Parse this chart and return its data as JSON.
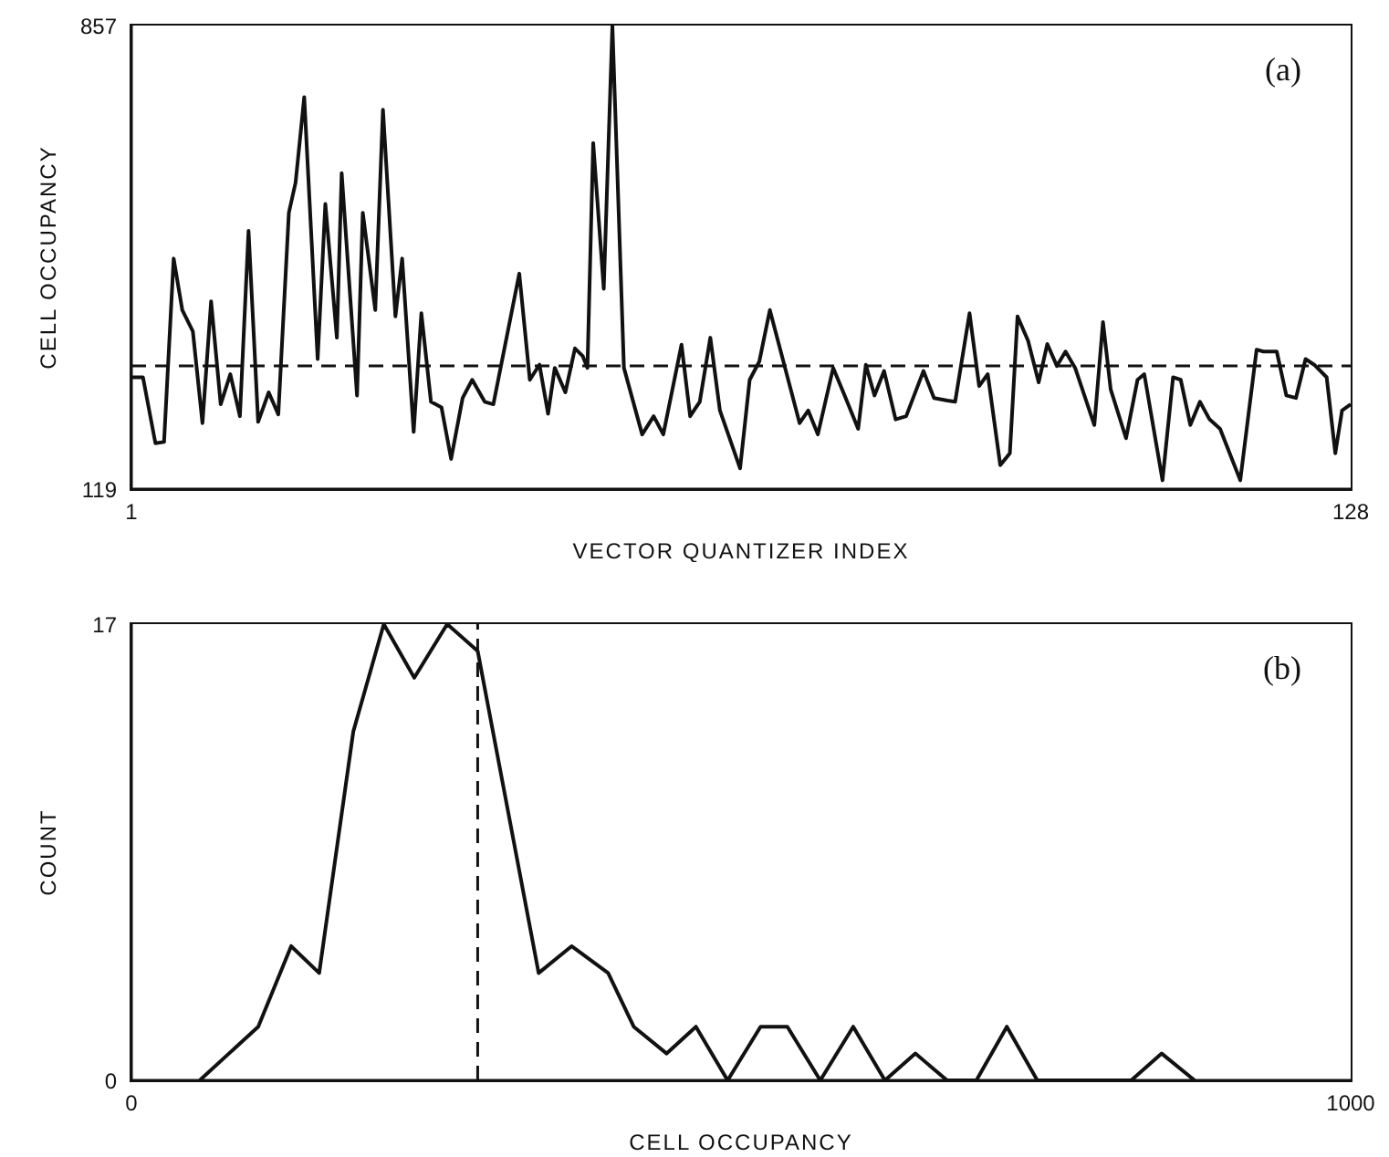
{
  "chart_data": [
    {
      "type": "line",
      "xlabel": "VECTOR QUANTIZER INDEX",
      "ylabel": "CELL OCCUPANCY",
      "annotations": [
        "(a)"
      ],
      "x": [
        1,
        2.2,
        3.5,
        4.4,
        5.4,
        6.3,
        7.4,
        8.4,
        9.3,
        10.3,
        11.3,
        12.3,
        13.2,
        14.2,
        15.3,
        16.3,
        17.4,
        18.1,
        19,
        20.4,
        21.2,
        22.4,
        22.9,
        24.5,
        25.1,
        26.4,
        27.2,
        28.5,
        29.2,
        30.4,
        31.2,
        32.2,
        33.3,
        34.3,
        35.5,
        36.5,
        37.8,
        38.7,
        41.4,
        42.5,
        43.5,
        44.4,
        45.1,
        46.2,
        47.2,
        48,
        48.5,
        49.1,
        50.2,
        51.1,
        52.3,
        54.2,
        55.4,
        56.4,
        58.3,
        59.2,
        60.2,
        61.3,
        62.3,
        64.4,
        65.4,
        66.4,
        67.5,
        70.6,
        71.5,
        72.5,
        74.1,
        75.4,
        76.7,
        77.5,
        78.4,
        79.4,
        80.6,
        81.7,
        83.5,
        84.6,
        86,
        86.8,
        88.3,
        89.3,
        90.2,
        91.5,
        92.5,
        93.3,
        94.4,
        95.5,
        96.4,
        97.4,
        98.3,
        99.3,
        101.3,
        102.2,
        103,
        104.6,
        105.8,
        106.5,
        108.4,
        109.5,
        110.3,
        111.3,
        112.3,
        113.3,
        114.4,
        116.5,
        118.2,
        118.9,
        120.3,
        121.3,
        122.3,
        123.3,
        124.2,
        125.5,
        126.4,
        127.1,
        128
      ],
      "series": [
        {
          "color": "#111111",
          "values": [
            297,
            297,
            192,
            194,
            486,
            404,
            370,
            224,
            418,
            254,
            302,
            235,
            530,
            226,
            273,
            238,
            559,
            607,
            743,
            326,
            573,
            360,
            622,
            268,
            559,
            404,
            723,
            394,
            486,
            210,
            399,
            258,
            249,
            167,
            264,
            293,
            258,
            254,
            462,
            293,
            317,
            239,
            312,
            273,
            343,
            331,
            312,
            670,
            438,
            857,
            312,
            206,
            235,
            206,
            349,
            235,
            258,
            360,
            244,
            152,
            293,
            322,
            404,
            224,
            244,
            206,
            312,
            264,
            215,
            317,
            268,
            307,
            230,
            235,
            307,
            264,
            260,
            258,
            399,
            283,
            302,
            157,
            176,
            394,
            355,
            289,
            350,
            315,
            338,
            312,
            221,
            385,
            278,
            200,
            293,
            302,
            133,
            297,
            293,
            221,
            258,
            230,
            215,
            133,
            341,
            338,
            338,
            268,
            264,
            326,
            317,
            297,
            176,
            244,
            254
          ]
        }
      ],
      "xlim": [
        1,
        128
      ],
      "xticks": [
        1,
        128
      ],
      "ylim": [
        119,
        857
      ],
      "yticks": [
        119,
        857
      ],
      "grid": false,
      "ref_lines": [
        {
          "axis": "y",
          "value": 315,
          "line_style": "dashed",
          "color": "#111111"
        }
      ]
    },
    {
      "type": "line",
      "xlabel": "CELL OCCUPANCY",
      "ylabel": "COUNT",
      "annotations": [
        "(b)"
      ],
      "x": [
        56,
        104,
        131,
        154,
        182,
        207,
        232,
        259,
        284,
        334,
        361,
        391,
        412,
        439,
        463,
        489,
        516,
        538,
        565,
        592,
        618,
        643,
        669,
        693,
        718,
        743,
        820,
        845,
        872
      ],
      "series": [
        {
          "color": "#111111",
          "values": [
            0,
            2,
            5,
            4,
            13,
            17,
            15,
            17,
            16,
            4,
            5,
            4,
            2,
            1,
            2,
            0,
            2,
            2,
            0,
            2,
            0,
            1,
            0,
            0,
            2,
            0,
            0,
            1,
            0
          ]
        }
      ],
      "xlim": [
        0,
        1000
      ],
      "xticks": [
        0,
        1000
      ],
      "ylim": [
        0,
        17
      ],
      "yticks": [
        0,
        17
      ],
      "grid": false,
      "ref_lines": [
        {
          "axis": "x",
          "value": 284,
          "line_style": "dashed",
          "color": "#111111"
        }
      ]
    }
  ]
}
